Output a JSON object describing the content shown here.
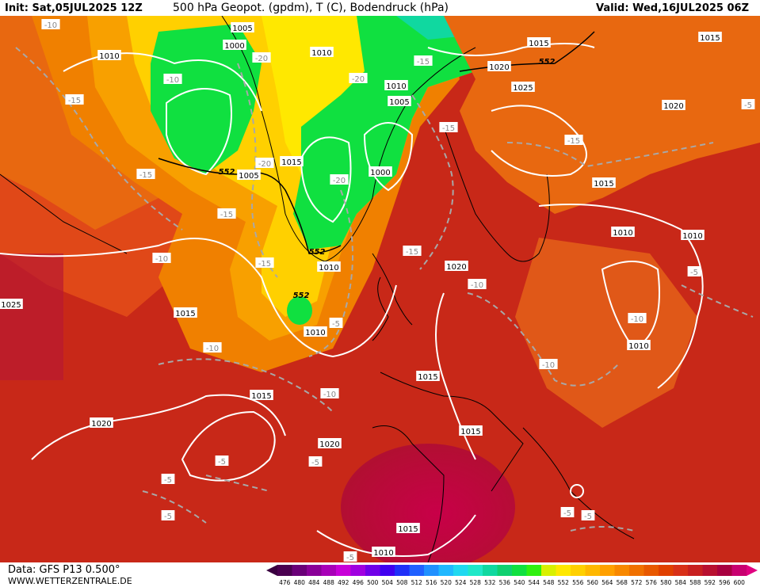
{
  "header": {
    "init": "Init: Sat,05JUL2025 12Z",
    "title": "500 hPa Geopot. (gpdm), T (C), Bodendruck (hPa)",
    "valid": "Valid: Wed,16JUL2025 06Z"
  },
  "footer": {
    "data_source": "Data: GFS P13 0.500°",
    "website": "WWW.WETTERZENTRALE.DE"
  },
  "legend": {
    "ticks": [
      "476",
      "480",
      "484",
      "488",
      "492",
      "496",
      "500",
      "504",
      "508",
      "512",
      "516",
      "520",
      "524",
      "528",
      "532",
      "536",
      "540",
      "544",
      "548",
      "552",
      "556",
      "560",
      "564",
      "568",
      "572",
      "576",
      "580",
      "584",
      "588",
      "592",
      "596",
      "600"
    ],
    "colors": [
      "#4a0050",
      "#6a0078",
      "#8a0098",
      "#a800b8",
      "#c800d8",
      "#a000e0",
      "#7000e8",
      "#4000f0",
      "#2030f8",
      "#2060ff",
      "#2090ff",
      "#20b8ff",
      "#20d8f0",
      "#20e8c8",
      "#10d8a0",
      "#10d070",
      "#10e040",
      "#30f010",
      "#d8f000",
      "#ffe800",
      "#ffd000",
      "#ffb800",
      "#ffa000",
      "#f88800",
      "#f07000",
      "#e85800",
      "#e04000",
      "#d83018",
      "#c82020",
      "#b81030",
      "#a80040",
      "#c80070"
    ]
  },
  "map": {
    "isobar_labels": [
      "1005",
      "1000",
      "1010",
      "1010",
      "1015",
      "1020",
      "1025",
      "1005",
      "1015",
      "1010",
      "1005",
      "1015",
      "1020",
      "1000",
      "1010",
      "1010",
      "1015",
      "1020",
      "1015",
      "1010",
      "1010",
      "1015",
      "1015",
      "1020",
      "1015",
      "1020",
      "1015",
      "1010",
      "1010",
      "1025"
    ],
    "temp_labels": [
      "-10",
      "-15",
      "-20",
      "-15",
      "-10",
      "-15",
      "-15",
      "-20",
      "-20",
      "-15",
      "-15",
      "-20",
      "-15",
      "-15",
      "-10",
      "-10",
      "-10",
      "-5",
      "-10",
      "-10",
      "-10",
      "-5",
      "-5",
      "-5",
      "-5",
      "-5",
      "-5",
      "-5",
      "-5",
      "-5"
    ],
    "geopot_labels": [
      "552",
      "552",
      "552",
      "552"
    ],
    "colors": {
      "land_outline": "#000000",
      "isobar": "#ffffff",
      "temp_contour": "#a8a8a8",
      "geopot": "#000000"
    }
  }
}
